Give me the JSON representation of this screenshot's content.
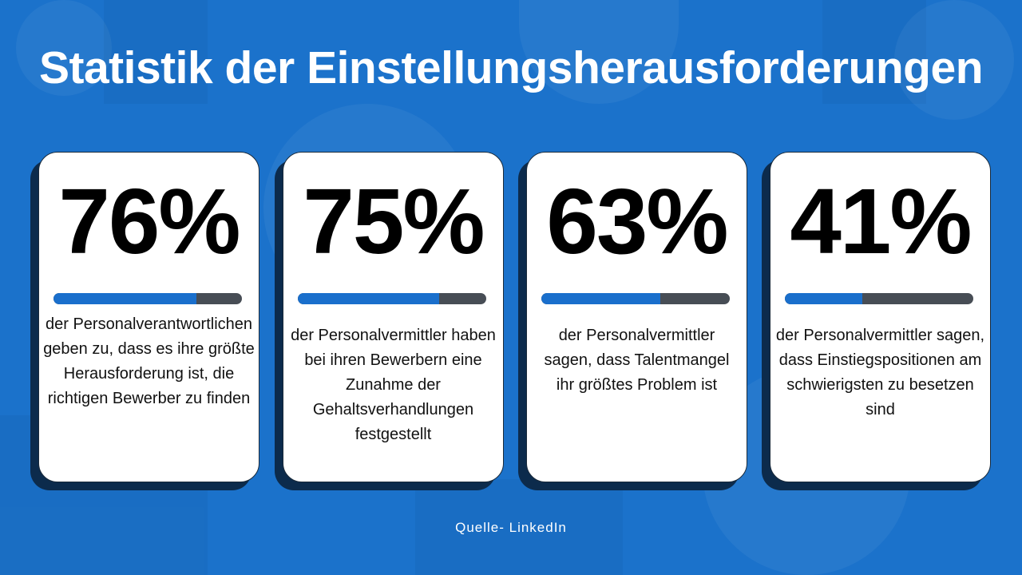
{
  "title": "Statistik der Einstellungsherausforderungen",
  "cards": [
    {
      "value": "76%",
      "progress_percent": 76,
      "text": "der Personalverantwortlichen geben zu, dass es ihre größte Herausforderung ist, die richtigen Bewerber zu finden"
    },
    {
      "value": "75%",
      "progress_percent": 75,
      "text": "der Personalvermittler haben bei ihren Bewerbern eine Zunahme der Gehaltsverhandlungen festgestellt"
    },
    {
      "value": "63%",
      "progress_percent": 63,
      "text": "der Personalvermittler sagen, dass Talentmangel ihr größtes Problem ist"
    },
    {
      "value": "41%",
      "progress_percent": 41,
      "text": "der Personalvermittler sagen, dass Einstiegspositionen am schwierigsten zu besetzen sind"
    }
  ],
  "source": "Quelle- LinkedIn",
  "colors": {
    "background": "#1b72cb",
    "bar_fill": "#1a6fcc",
    "bar_track": "#474d55",
    "card_shadow": "#0c2b4c"
  }
}
